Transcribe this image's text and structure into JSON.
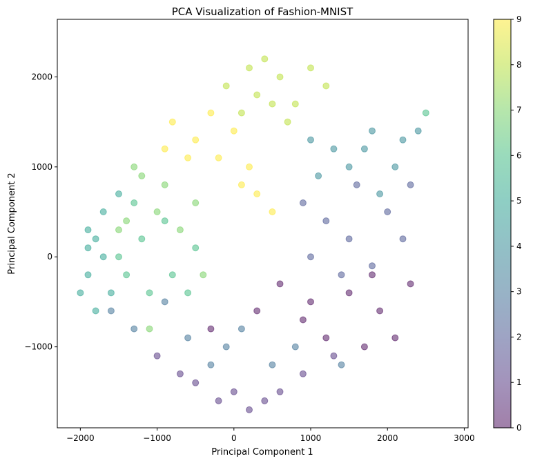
{
  "chart_data": {
    "type": "scatter",
    "title": "PCA Visualization of Fashion-MNIST",
    "xlabel": "Principal Component 1",
    "ylabel": "Principal Component 2",
    "xlim": [
      -2300,
      3050
    ],
    "ylim": [
      -1900,
      2640
    ],
    "xticks": [
      {
        "value": -2000,
        "label": "−2000"
      },
      {
        "value": -1000,
        "label": "−1000"
      },
      {
        "value": 0,
        "label": "0"
      },
      {
        "value": 1000,
        "label": "1000"
      },
      {
        "value": 2000,
        "label": "2000"
      },
      {
        "value": 3000,
        "label": "3000"
      }
    ],
    "yticks": [
      {
        "value": -1000,
        "label": "−1000"
      },
      {
        "value": 0,
        "label": "0"
      },
      {
        "value": 1000,
        "label": "1000"
      },
      {
        "value": 2000,
        "label": "2000"
      }
    ],
    "grid": false,
    "marker_alpha": 0.5,
    "colormap": "viridis",
    "colormap_stops": [
      "#440154",
      "#482878",
      "#3e4989",
      "#31688e",
      "#26828e",
      "#1f9e89",
      "#35b779",
      "#6ece58",
      "#b5de2b",
      "#fde725"
    ],
    "colorbar": {
      "range": [
        0,
        9
      ],
      "ticks": [
        {
          "value": 0,
          "label": "0"
        },
        {
          "value": 1,
          "label": "1"
        },
        {
          "value": 2,
          "label": "2"
        },
        {
          "value": 3,
          "label": "3"
        },
        {
          "value": 4,
          "label": "4"
        },
        {
          "value": 5,
          "label": "5"
        },
        {
          "value": 6,
          "label": "6"
        },
        {
          "value": 7,
          "label": "7"
        },
        {
          "value": 8,
          "label": "8"
        },
        {
          "value": 9,
          "label": "9"
        }
      ]
    },
    "series": [
      {
        "label_value": 0,
        "points": [
          [
            900,
            -700
          ],
          [
            1900,
            -600
          ],
          [
            1500,
            -400
          ],
          [
            300,
            -600
          ],
          [
            2100,
            -900
          ],
          [
            -300,
            -800
          ],
          [
            1200,
            -900
          ],
          [
            2300,
            -300
          ],
          [
            1700,
            -1000
          ],
          [
            600,
            -300
          ],
          [
            1000,
            -500
          ],
          [
            1800,
            -200
          ]
        ]
      },
      {
        "label_value": 1,
        "points": [
          [
            0,
            -1500
          ],
          [
            -500,
            -1400
          ],
          [
            400,
            -1600
          ],
          [
            900,
            -1300
          ],
          [
            -1000,
            -1100
          ],
          [
            200,
            -1700
          ],
          [
            -200,
            -1600
          ],
          [
            600,
            -1500
          ],
          [
            1300,
            -1100
          ],
          [
            -700,
            -1300
          ]
        ]
      },
      {
        "label_value": 2,
        "points": [
          [
            1500,
            200
          ],
          [
            2000,
            500
          ],
          [
            1800,
            -100
          ],
          [
            1200,
            400
          ],
          [
            2300,
            800
          ],
          [
            1000,
            0
          ],
          [
            1600,
            800
          ],
          [
            2200,
            200
          ],
          [
            900,
            600
          ],
          [
            1400,
            -200
          ]
        ]
      },
      {
        "label_value": 3,
        "points": [
          [
            -600,
            -900
          ],
          [
            -1300,
            -800
          ],
          [
            -100,
            -1000
          ],
          [
            500,
            -1200
          ],
          [
            -900,
            -500
          ],
          [
            1400,
            -1200
          ],
          [
            100,
            -800
          ],
          [
            -1600,
            -600
          ],
          [
            800,
            -1000
          ],
          [
            -300,
            -1200
          ]
        ]
      },
      {
        "label_value": 4,
        "points": [
          [
            1700,
            1200
          ],
          [
            2100,
            1000
          ],
          [
            1300,
            1200
          ],
          [
            2400,
            1400
          ],
          [
            1900,
            700
          ],
          [
            1100,
            900
          ],
          [
            1500,
            1000
          ],
          [
            2200,
            1300
          ],
          [
            1800,
            1400
          ],
          [
            1000,
            1300
          ]
        ]
      },
      {
        "label_value": 5,
        "points": [
          [
            -1900,
            -200
          ],
          [
            -1800,
            200
          ],
          [
            -1700,
            500
          ],
          [
            -1900,
            100
          ],
          [
            -1600,
            -400
          ],
          [
            -2000,
            -400
          ],
          [
            -1500,
            700
          ],
          [
            -1800,
            -600
          ],
          [
            -1700,
            0
          ],
          [
            -1900,
            300
          ]
        ]
      },
      {
        "label_value": 6,
        "points": [
          [
            -1200,
            200
          ],
          [
            -800,
            -200
          ],
          [
            -1400,
            -200
          ],
          [
            -500,
            100
          ],
          [
            -900,
            400
          ],
          [
            -1100,
            -400
          ],
          [
            -1300,
            600
          ],
          [
            -600,
            -400
          ],
          [
            -1500,
            0
          ],
          [
            2500,
            1600
          ]
        ]
      },
      {
        "label_value": 7,
        "points": [
          [
            -900,
            800
          ],
          [
            -1200,
            900
          ],
          [
            -1400,
            400
          ],
          [
            -500,
            600
          ],
          [
            -1000,
            500
          ],
          [
            -700,
            300
          ],
          [
            -1300,
            1000
          ],
          [
            -1100,
            -800
          ],
          [
            -400,
            -200
          ],
          [
            -1500,
            300
          ]
        ]
      },
      {
        "label_value": 8,
        "points": [
          [
            300,
            1800
          ],
          [
            600,
            2000
          ],
          [
            100,
            1600
          ],
          [
            800,
            1700
          ],
          [
            400,
            2200
          ],
          [
            -100,
            1900
          ],
          [
            1000,
            2100
          ],
          [
            700,
            1500
          ],
          [
            500,
            1700
          ],
          [
            1200,
            1900
          ],
          [
            200,
            2100
          ]
        ]
      },
      {
        "label_value": 9,
        "points": [
          [
            -500,
            1300
          ],
          [
            -200,
            1100
          ],
          [
            100,
            800
          ],
          [
            -800,
            1500
          ],
          [
            -300,
            1600
          ],
          [
            200,
            1000
          ],
          [
            500,
            500
          ],
          [
            -600,
            1100
          ],
          [
            0,
            1400
          ],
          [
            300,
            700
          ],
          [
            -900,
            1200
          ]
        ]
      }
    ]
  }
}
